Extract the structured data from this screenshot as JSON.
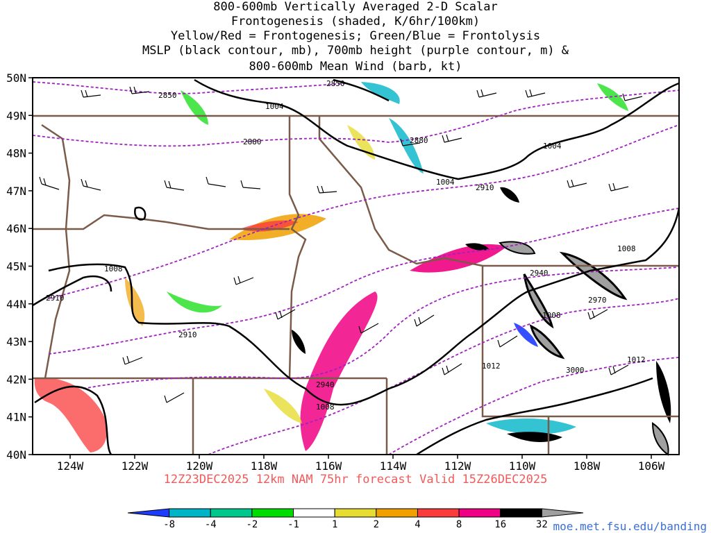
{
  "title_lines": [
    "800-600mb Vertically Averaged 2-D Scalar",
    "Frontogenesis (shaded, K/6hr/100km)",
    "Yellow/Red = Frontogenesis;  Green/Blue = Frontolysis",
    "MSLP (black contour, mb), 700mb height (purple contour, m) &",
    "800-600mb Mean Wind (barb, kt)"
  ],
  "footer": "12Z23DEC2025 12km NAM 75hr forecast Valid 15Z26DEC2025",
  "credit": "moe.met.fsu.edu/banding",
  "map": {
    "lat_labels": [
      "50N",
      "49N",
      "48N",
      "47N",
      "46N",
      "45N",
      "44N",
      "43N",
      "42N",
      "41N",
      "40N"
    ],
    "lon_labels": [
      "124W",
      "122W",
      "120W",
      "118W",
      "116W",
      "114W",
      "112W",
      "110W",
      "108W",
      "106W"
    ],
    "mslp_labels": [
      "1004",
      "1004",
      "1004",
      "1008",
      "1008",
      "1008",
      "1012",
      "1012",
      "1008"
    ],
    "height_labels": [
      "2850",
      "2850",
      "2880",
      "2880",
      "2910",
      "2910",
      "2910",
      "2940",
      "2940",
      "2970",
      "3000"
    ]
  },
  "colorbar": {
    "labels": [
      "-8",
      "-4",
      "-2",
      "-1",
      "1",
      "2",
      "4",
      "8",
      "16",
      "32"
    ],
    "colors": [
      "#1e3cff",
      "#00b4c8",
      "#00c88c",
      "#00dc00",
      "#ffffff",
      "#e6dc32",
      "#f0a000",
      "#fa3c3c",
      "#f00082",
      "#000000",
      "#a0a0a0"
    ]
  },
  "colors": {
    "mslp": "#000000",
    "height": "#a020c0",
    "borders": "#7a5a48",
    "footer": "#f25a5a",
    "credit": "#3a6fd8"
  }
}
